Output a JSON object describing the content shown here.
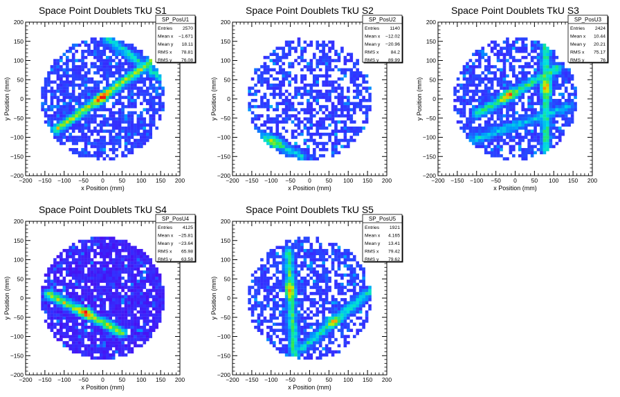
{
  "chart_data": [
    {
      "type": "heatmap",
      "title": "Space Point Doublets TkU S1",
      "xlabel": "x Position (mm)",
      "ylabel": "y Position (mm)",
      "xlim": [
        -200,
        200
      ],
      "ylim": [
        -200,
        200
      ],
      "xticks": [
        "−200",
        "−150",
        "−100",
        "−50",
        "0",
        "50",
        "100",
        "150",
        "200"
      ],
      "yticks": [
        "−200",
        "−150",
        "−100",
        "−50",
        "0",
        "50",
        "100",
        "150",
        "200"
      ],
      "bin_width_mm": 8,
      "coverage_radius_mm": 160,
      "track_bands": [
        {
          "from": [
            -120,
            -80
          ],
          "to": [
            130,
            100
          ],
          "peak": [
            0,
            0
          ],
          "level": 0.7
        },
        {
          "from": [
            10,
            160
          ],
          "to": [
            150,
            55
          ],
          "level": 0.45
        }
      ],
      "stats": {
        "name": "SP_PosU1",
        "rows": [
          {
            "label": "Entries",
            "value": "2570"
          },
          {
            "label": "Mean x",
            "value": "−1.671"
          },
          {
            "label": "Mean y",
            "value": "18.11"
          },
          {
            "label": "RMS x",
            "value": "78.81"
          },
          {
            "label": "RMS y",
            "value": "76.08"
          }
        ]
      }
    },
    {
      "type": "heatmap",
      "title": "Space Point Doublets TkU S2",
      "xlabel": "x Position (mm)",
      "ylabel": "y Position (mm)",
      "xlim": [
        -200,
        200
      ],
      "ylim": [
        -200,
        200
      ],
      "xticks": [
        "−200",
        "−150",
        "−100",
        "−50",
        "0",
        "50",
        "100",
        "150",
        "200"
      ],
      "yticks": [
        "−200",
        "−150",
        "−100",
        "−50",
        "0",
        "50",
        "100",
        "150",
        "200"
      ],
      "bin_width_mm": 8,
      "coverage_radius_mm": 160,
      "track_bands": [
        {
          "from": [
            -140,
            -90
          ],
          "to": [
            -20,
            -150
          ],
          "peak": [
            -90,
            -110
          ],
          "level": 0.4
        }
      ],
      "stats": {
        "name": "SP_PosU2",
        "rows": [
          {
            "label": "Entries",
            "value": "1140"
          },
          {
            "label": "Mean x",
            "value": "−12.02"
          },
          {
            "label": "Mean y",
            "value": "−20.96"
          },
          {
            "label": "RMS x",
            "value": "84.2"
          },
          {
            "label": "RMS y",
            "value": "89.99"
          }
        ]
      }
    },
    {
      "type": "heatmap",
      "title": "Space Point Doublets TkU S3",
      "xlabel": "x Position (mm)",
      "ylabel": "y Position (mm)",
      "xlim": [
        -200,
        200
      ],
      "ylim": [
        -200,
        200
      ],
      "xticks": [
        "−200",
        "−150",
        "−100",
        "−50",
        "0",
        "50",
        "100",
        "150",
        "200"
      ],
      "yticks": [
        "−200",
        "−150",
        "−100",
        "−50",
        "0",
        "50",
        "100",
        "150",
        "200"
      ],
      "bin_width_mm": 8,
      "coverage_radius_mm": 160,
      "track_bands": [
        {
          "from": [
            -100,
            -40
          ],
          "to": [
            110,
            80
          ],
          "peak": [
            -20,
            10
          ],
          "level": 0.55
        },
        {
          "from": [
            80,
            160
          ],
          "to": [
            80,
            -130
          ],
          "peak": [
            80,
            30
          ],
          "level": 0.55
        },
        {
          "from": [
            -120,
            -110
          ],
          "to": [
            140,
            -20
          ],
          "level": 0.35
        }
      ],
      "stats": {
        "name": "SP_PosU3",
        "rows": [
          {
            "label": "Entries",
            "value": "2424"
          },
          {
            "label": "Mean x",
            "value": "10.44"
          },
          {
            "label": "Mean y",
            "value": "20.21"
          },
          {
            "label": "RMS x",
            "value": "75.17"
          },
          {
            "label": "RMS y",
            "value": "76"
          }
        ]
      }
    },
    {
      "type": "heatmap",
      "title": "Space Point Doublets TkU S4",
      "xlabel": "x Position (mm)",
      "ylabel": "y Position (mm)",
      "xlim": [
        -200,
        200
      ],
      "ylim": [
        -200,
        200
      ],
      "xticks": [
        "−200",
        "−150",
        "−100",
        "−50",
        "0",
        "50",
        "100",
        "150",
        "200"
      ],
      "yticks": [
        "−200",
        "−150",
        "−100",
        "−50",
        "0",
        "50",
        "100",
        "150",
        "200"
      ],
      "bin_width_mm": 8,
      "coverage_radius_mm": 160,
      "track_bands": [
        {
          "from": [
            -140,
            10
          ],
          "to": [
            50,
            -90
          ],
          "peak": [
            -40,
            -30
          ],
          "level": 0.7
        }
      ],
      "stats": {
        "name": "SP_PosU4",
        "rows": [
          {
            "label": "Entries",
            "value": "4125"
          },
          {
            "label": "Mean x",
            "value": "−25.81"
          },
          {
            "label": "Mean y",
            "value": "−23.64"
          },
          {
            "label": "RMS x",
            "value": "65.98"
          },
          {
            "label": "RMS y",
            "value": "63.58"
          }
        ]
      }
    },
    {
      "type": "heatmap",
      "title": "Space Point Doublets TkU S5",
      "xlabel": "x Position (mm)",
      "ylabel": "y Position (mm)",
      "xlim": [
        -200,
        200
      ],
      "ylim": [
        -200,
        200
      ],
      "xticks": [
        "−200",
        "−150",
        "−100",
        "−50",
        "0",
        "50",
        "100",
        "150",
        "200"
      ],
      "yticks": [
        "−200",
        "−150",
        "−100",
        "−50",
        "0",
        "50",
        "100",
        "150",
        "200"
      ],
      "bin_width_mm": 8,
      "coverage_radius_mm": 160,
      "track_bands": [
        {
          "from": [
            -55,
            120
          ],
          "to": [
            -40,
            -150
          ],
          "peak": [
            -55,
            20
          ],
          "level": 0.55
        },
        {
          "from": [
            -20,
            -130
          ],
          "to": [
            160,
            20
          ],
          "peak": [
            60,
            -60
          ],
          "level": 0.45
        }
      ],
      "stats": {
        "name": "SP_PosU5",
        "rows": [
          {
            "label": "Entries",
            "value": "1921"
          },
          {
            "label": "Mean x",
            "value": "4.165"
          },
          {
            "label": "Mean y",
            "value": "13.41"
          },
          {
            "label": "RMS x",
            "value": "79.42"
          },
          {
            "label": "RMS y",
            "value": "79.62"
          }
        ]
      }
    }
  ]
}
